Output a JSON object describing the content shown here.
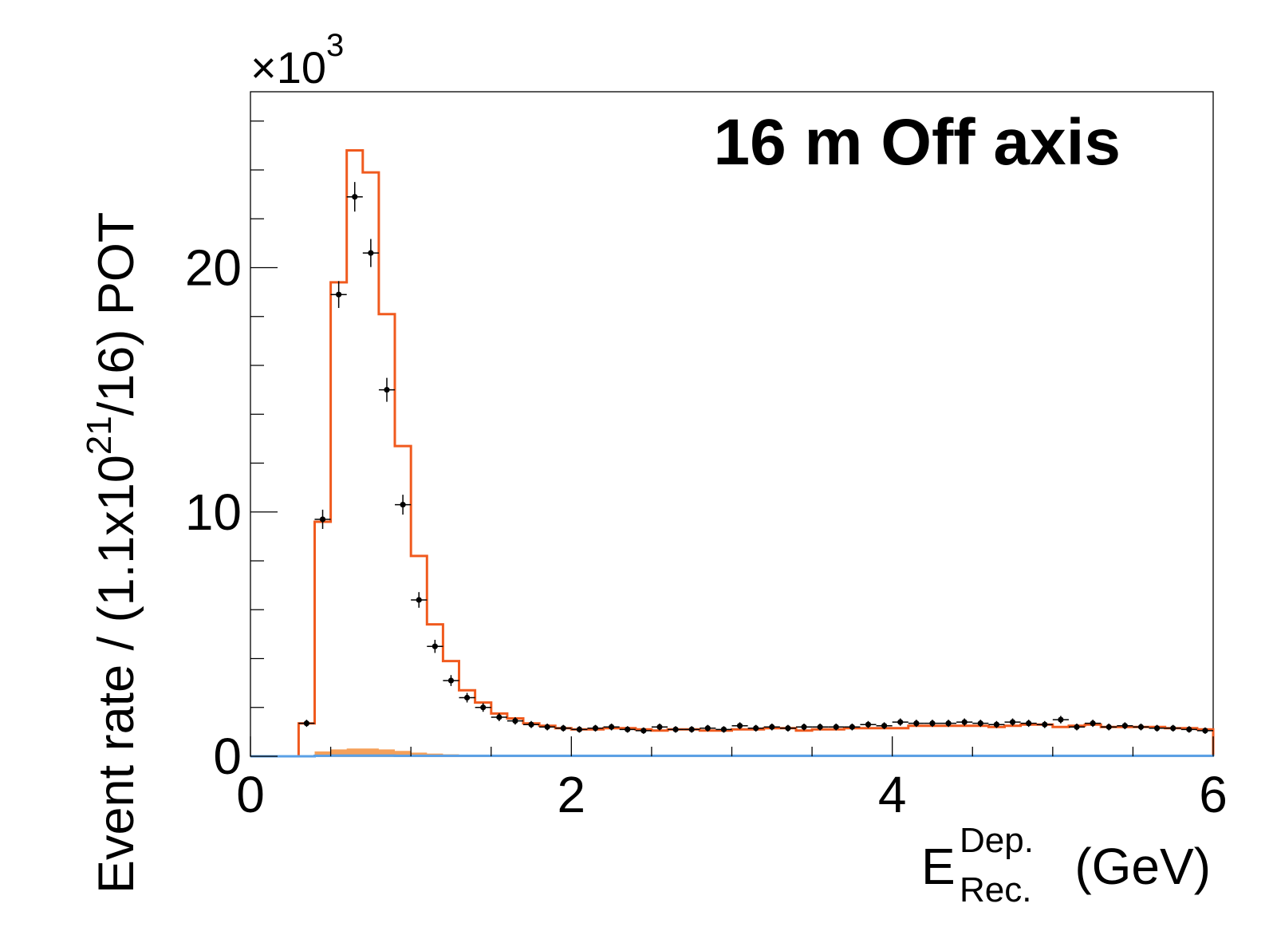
{
  "chart_data": {
    "type": "histogram",
    "title": "16 m Off axis",
    "xlabel": {
      "main": "E",
      "sup": "Dep.",
      "sub": "Rec.",
      "unit": "(GeV)"
    },
    "ylabel": {
      "pre": "Event rate / (1.1x10",
      "sup": "21",
      "post": "/16) POT"
    },
    "y_multiplier": {
      "prefix": "×10",
      "exp": "3"
    },
    "xlim": [
      0,
      6
    ],
    "ylim": [
      0,
      27.2
    ],
    "x_ticks": [
      "0",
      "2",
      "4",
      "6"
    ],
    "y_ticks": [
      "0",
      "10",
      "20"
    ],
    "x_major_values": [
      0,
      2,
      4,
      6
    ],
    "y_major_values": [
      0,
      10,
      20
    ],
    "bin_edges": [
      0.0,
      0.1,
      0.2,
      0.3,
      0.4,
      0.5,
      0.6,
      0.7,
      0.8,
      0.9,
      1.0,
      1.1,
      1.2,
      1.3,
      1.4,
      1.5,
      1.6,
      1.7,
      1.8,
      1.9,
      2.0,
      2.1,
      2.2,
      2.3,
      2.4,
      2.5,
      2.6,
      2.7,
      2.8,
      2.9,
      3.0,
      3.1,
      3.2,
      3.3,
      3.4,
      3.5,
      3.6,
      3.7,
      3.8,
      3.9,
      4.0,
      4.1,
      4.2,
      4.3,
      4.4,
      4.5,
      4.6,
      4.7,
      4.8,
      4.9,
      5.0,
      5.1,
      5.2,
      5.3,
      5.4,
      5.5,
      5.6,
      5.7,
      5.8,
      5.9,
      6.0
    ],
    "series": [
      {
        "kind": "step",
        "color": "#f05a1e",
        "values": [
          0,
          0,
          0,
          1.35,
          9.6,
          19.4,
          24.8,
          23.9,
          18.1,
          12.7,
          8.2,
          5.4,
          3.9,
          2.7,
          2.2,
          1.75,
          1.55,
          1.35,
          1.25,
          1.15,
          1.1,
          1.1,
          1.15,
          1.15,
          1.1,
          1.05,
          1.1,
          1.1,
          1.05,
          1.05,
          1.1,
          1.1,
          1.15,
          1.15,
          1.05,
          1.1,
          1.1,
          1.15,
          1.15,
          1.15,
          1.15,
          1.25,
          1.25,
          1.25,
          1.25,
          1.25,
          1.2,
          1.25,
          1.3,
          1.3,
          1.2,
          1.25,
          1.3,
          1.2,
          1.2,
          1.2,
          1.2,
          1.15,
          1.15,
          1.1
        ]
      },
      {
        "kind": "points",
        "color": "#000000",
        "values": [
          0,
          0,
          0,
          1.35,
          9.7,
          18.9,
          22.9,
          20.6,
          15.0,
          10.3,
          6.4,
          4.5,
          3.1,
          2.4,
          2.0,
          1.6,
          1.45,
          1.3,
          1.2,
          1.15,
          1.1,
          1.15,
          1.2,
          1.1,
          1.05,
          1.2,
          1.1,
          1.1,
          1.15,
          1.1,
          1.25,
          1.15,
          1.2,
          1.15,
          1.2,
          1.2,
          1.2,
          1.2,
          1.3,
          1.25,
          1.4,
          1.35,
          1.35,
          1.35,
          1.4,
          1.35,
          1.3,
          1.4,
          1.35,
          1.3,
          1.5,
          1.2,
          1.35,
          1.2,
          1.25,
          1.2,
          1.15,
          1.15,
          1.1,
          1.05
        ]
      },
      {
        "kind": "fill",
        "color": "#f5a05a",
        "values": [
          0,
          0,
          0,
          0,
          0.2,
          0.28,
          0.32,
          0.32,
          0.28,
          0.22,
          0.15,
          0.11,
          0.08,
          0.06,
          0.05,
          0.04,
          0.04,
          0.03,
          0.03,
          0.03,
          0.03,
          0.03,
          0.03,
          0.03,
          0.03,
          0.03,
          0.03,
          0.03,
          0.03,
          0.03,
          0.03,
          0.03,
          0.03,
          0.03,
          0.03,
          0.03,
          0.03,
          0.03,
          0.03,
          0.03,
          0.03,
          0.03,
          0.03,
          0.03,
          0.03,
          0.03,
          0.03,
          0.03,
          0.03,
          0.03,
          0.03,
          0.03,
          0.03,
          0.03,
          0.03,
          0.03,
          0.03,
          0.03,
          0.03,
          0.03
        ]
      },
      {
        "kind": "step",
        "color": "#5aa0e6",
        "values": [
          0,
          0,
          0,
          0,
          0.02,
          0.03,
          0.03,
          0.03,
          0.03,
          0.02,
          0.02,
          0.02,
          0.02,
          0.02,
          0.02,
          0.02,
          0.02,
          0.02,
          0.02,
          0.02,
          0.02,
          0.02,
          0.02,
          0.02,
          0.02,
          0.02,
          0.02,
          0.02,
          0.02,
          0.02,
          0.02,
          0.02,
          0.02,
          0.02,
          0.02,
          0.02,
          0.02,
          0.02,
          0.02,
          0.02,
          0.02,
          0.02,
          0.02,
          0.02,
          0.02,
          0.02,
          0.02,
          0.02,
          0.02,
          0.02,
          0.02,
          0.02,
          0.02,
          0.02,
          0.02,
          0.02,
          0.02,
          0.02,
          0.02,
          0.02
        ]
      }
    ]
  }
}
